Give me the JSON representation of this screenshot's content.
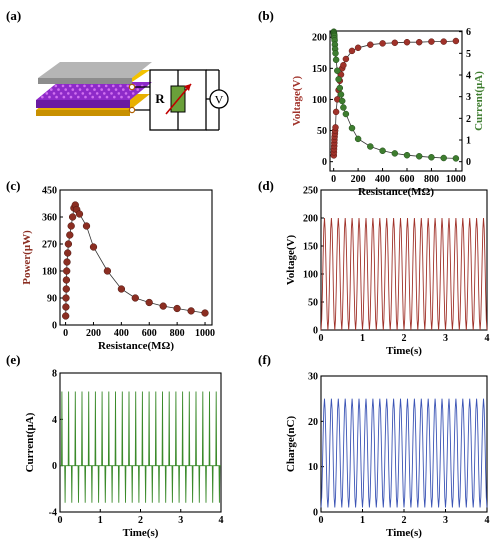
{
  "panels": [
    {
      "label": "(a)"
    },
    {
      "label": "(b)"
    },
    {
      "label": "(c)"
    },
    {
      "label": "(d)"
    },
    {
      "label": "(e)"
    },
    {
      "label": "(f)"
    }
  ],
  "schematic": {
    "resistor_label": "R",
    "meter_label": "V"
  },
  "colors": {
    "voltage": "#a0322a",
    "current_b": "#3e7d2f",
    "power": "#8b2e22",
    "trace_d": "#a0322a",
    "trace_e": "#3a8a2a",
    "trace_f": "#3b54b5",
    "gray_layer": "#a8a8a8",
    "purple_layer": "#8e2ac9",
    "yellow_layer": "#e8b000"
  },
  "chart_data": [
    {
      "id": "b",
      "type": "scatter",
      "xlabel": "Resistance(MΩ)",
      "ylabel": "Voltage(V)",
      "y2label": "Current(μA)",
      "xlim": [
        -30,
        1050
      ],
      "ylim": [
        -15,
        210
      ],
      "y2lim": [
        -0.43,
        6.03
      ],
      "xticks": [
        0,
        200,
        400,
        600,
        800,
        1000
      ],
      "yticks": [
        0,
        50,
        100,
        150,
        200
      ],
      "y2ticks": [
        0,
        1,
        2,
        3,
        4,
        5,
        6
      ],
      "series": [
        {
          "axis": "left",
          "x": [
            1,
            2,
            3,
            4,
            5,
            6,
            8,
            10,
            12,
            15,
            20,
            30,
            40,
            50,
            60,
            70,
            80,
            100,
            150,
            200,
            300,
            400,
            500,
            600,
            700,
            800,
            900,
            1000
          ],
          "y": [
            10,
            15,
            20,
            25,
            30,
            35,
            40,
            45,
            50,
            55,
            80,
            100,
            115,
            130,
            140,
            150,
            155,
            165,
            178,
            183,
            188,
            190,
            191,
            192,
            192,
            193,
            193,
            194
          ]
        },
        {
          "axis": "right",
          "x": [
            1,
            2,
            3,
            4,
            5,
            6,
            8,
            10,
            12,
            15,
            20,
            30,
            40,
            50,
            60,
            70,
            80,
            100,
            150,
            200,
            300,
            400,
            500,
            600,
            700,
            800,
            900,
            1000
          ],
          "y": [
            6.0,
            5.95,
            5.9,
            5.85,
            5.8,
            5.7,
            5.6,
            5.4,
            5.2,
            5.0,
            4.7,
            4.2,
            3.8,
            3.4,
            3.1,
            2.8,
            2.5,
            2.2,
            1.55,
            1.05,
            0.7,
            0.5,
            0.38,
            0.3,
            0.25,
            0.2,
            0.17,
            0.15
          ]
        }
      ]
    },
    {
      "id": "c",
      "type": "scatter",
      "xlabel": "Resistance(MΩ)",
      "ylabel": "Power(μW)",
      "xlim": [
        -40,
        1050
      ],
      "ylim": [
        0,
        450
      ],
      "xticks": [
        0,
        200,
        400,
        600,
        800,
        1000
      ],
      "yticks": [
        0,
        90,
        180,
        270,
        360,
        450
      ],
      "series": [
        {
          "x": [
            1,
            2,
            3,
            5,
            6,
            8,
            10,
            15,
            20,
            30,
            40,
            50,
            60,
            70,
            80,
            100,
            150,
            200,
            300,
            400,
            500,
            600,
            700,
            800,
            900,
            1000
          ],
          "y": [
            30,
            60,
            90,
            120,
            150,
            180,
            210,
            240,
            270,
            300,
            330,
            360,
            390,
            400,
            385,
            370,
            330,
            260,
            180,
            120,
            90,
            75,
            63,
            55,
            47,
            40
          ]
        }
      ]
    },
    {
      "id": "d",
      "type": "line",
      "xlabel": "Time(s)",
      "ylabel": "Voltage(V)",
      "xlim": [
        0,
        4
      ],
      "ylim": [
        0,
        250
      ],
      "xticks": [
        0,
        1,
        2,
        3,
        4
      ],
      "xticklabels": [
        "0",
        "1",
        "2",
        "3",
        "4"
      ],
      "yticks": [
        0,
        50,
        100,
        150,
        200,
        250
      ],
      "waveform": {
        "cycles": 24,
        "low": 0,
        "high": 200
      }
    },
    {
      "id": "e",
      "type": "line",
      "xlabel": "Time(s)",
      "ylabel": "Current(μA)",
      "xlim": [
        0,
        4
      ],
      "ylim": [
        -4,
        8
      ],
      "xticks": [
        0,
        1,
        2,
        3,
        4
      ],
      "xticklabels": [
        "0",
        "1",
        "2",
        "3",
        "4"
      ],
      "yticks": [
        -4,
        0,
        4,
        8
      ],
      "waveform": {
        "cycles": 24,
        "peak": 6.4,
        "trough": -3.2,
        "baseline": 0
      }
    },
    {
      "id": "f",
      "type": "line",
      "xlabel": "Time(s)",
      "ylabel": "Charge(nC)",
      "xlim": [
        0,
        4
      ],
      "ylim": [
        0,
        30
      ],
      "xticks": [
        0,
        1,
        2,
        3,
        4
      ],
      "xticklabels": [
        "0",
        "1",
        "2",
        "3",
        "4"
      ],
      "yticks": [
        0,
        10,
        20,
        30
      ],
      "waveform": {
        "cycles": 24,
        "low": 1,
        "high": 25
      }
    }
  ]
}
